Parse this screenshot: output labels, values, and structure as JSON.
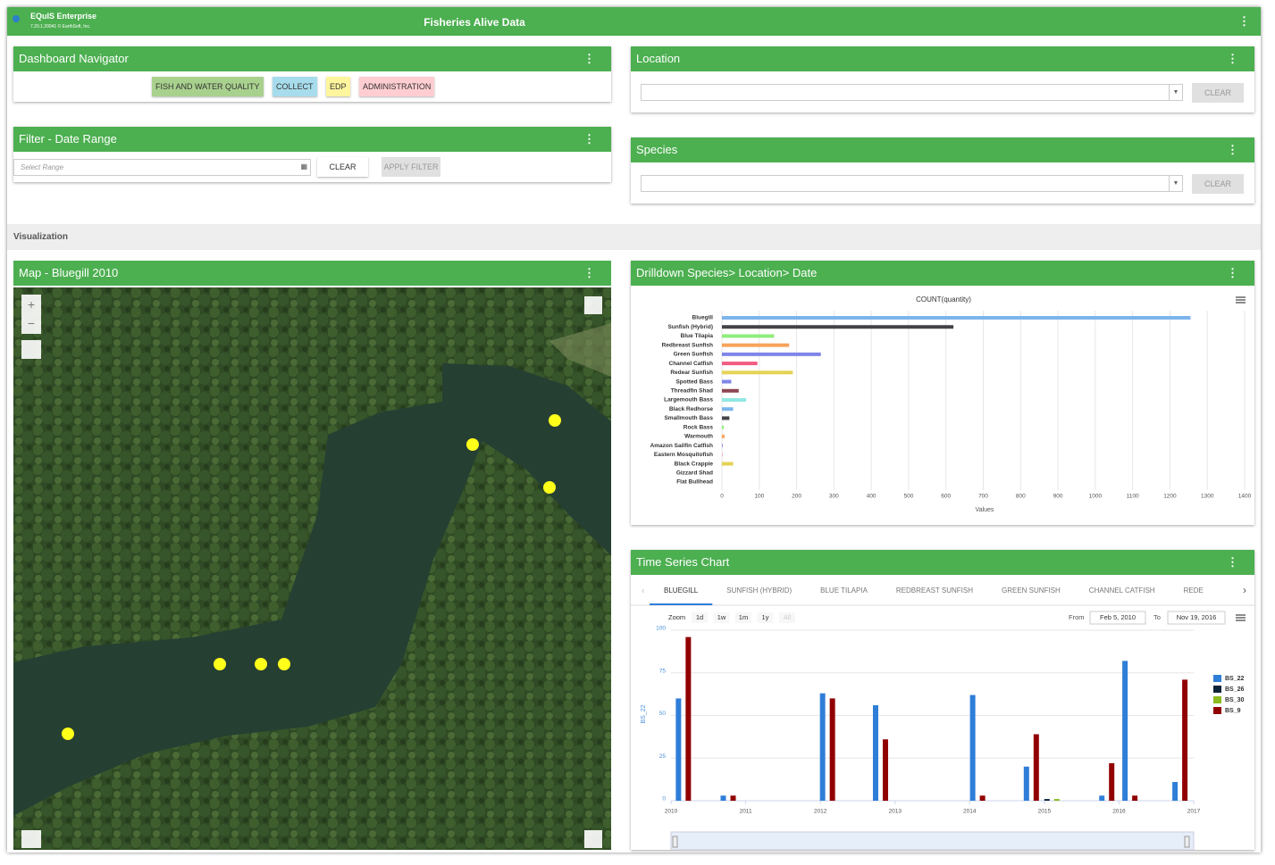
{
  "header": {
    "app_name": "EQuIS Enterprise",
    "version": "7.20.1.20041 © EarthSoft, Inc.",
    "title": "Fisheries Alive Data"
  },
  "navigator": {
    "title": "Dashboard Navigator",
    "buttons": [
      "FISH AND WATER QUALITY",
      "COLLECT",
      "EDP",
      "ADMINISTRATION"
    ]
  },
  "filter": {
    "title": "Filter - Date Range",
    "placeholder": "Select Range",
    "clear": "CLEAR",
    "apply": "APPLY FILTER"
  },
  "location": {
    "title": "Location",
    "clear": "CLEAR"
  },
  "species": {
    "title": "Species",
    "clear": "CLEAR"
  },
  "section": "Visualization",
  "map": {
    "title": "Map - Bluegill 2010"
  },
  "drilldown": {
    "title": "Drilldown Species> Location> Date"
  },
  "time_series_panel": {
    "title": "Time Series Chart",
    "tabs": [
      "BLUEGILL",
      "SUNFISH (HYBRID)",
      "BLUE TILAPIA",
      "REDBREAST SUNFISH",
      "GREEN SUNFISH",
      "CHANNEL CATFISH",
      "REDE"
    ],
    "zoom_label": "Zoom",
    "zoom_buttons": [
      "1d",
      "1w",
      "1m",
      "1y",
      "All"
    ],
    "from_label": "From",
    "from": "Feb 5, 2010",
    "to_label": "To",
    "to": "Nov 19, 2016"
  },
  "chart_data": [
    {
      "type": "hbar",
      "title": "COUNT(quantity)",
      "x_label": "Values",
      "categories": [
        "Bluegill",
        "Sunfish (Hybrid)",
        "Blue Tilapia",
        "Redbreast Sunfish",
        "Green Sunfish",
        "Channel Catfish",
        "Redear Sunfish",
        "Spotted Bass",
        "Threadfin Shad",
        "Largemouth Bass",
        "Black Redhorse",
        "Smallmouth Bass",
        "Rock Bass",
        "Warmouth",
        "Amazon Sailfin Catfish",
        "Eastern Mosquitofish",
        "Black Crappie",
        "Gizzard Shad",
        "Flat Bullhead"
      ],
      "values": [
        1255,
        620,
        140,
        180,
        265,
        95,
        190,
        25,
        45,
        65,
        30,
        20,
        5,
        7,
        2,
        1,
        30,
        0,
        0
      ],
      "colors": [
        "#7cb5ec",
        "#434348",
        "#90ed7d",
        "#f7a35c",
        "#8085e9",
        "#f15c80",
        "#e4d354",
        "#8085e8",
        "#8d4653",
        "#91e8e1",
        "#7cb5ec",
        "#434348",
        "#90ed7d",
        "#f7a35c",
        "#8085e9",
        "#f15c80",
        "#e4d354",
        "#2b908f",
        "#f45b5b"
      ],
      "xlim": [
        0,
        1400
      ],
      "xticks": [
        0,
        100,
        200,
        300,
        400,
        500,
        600,
        700,
        800,
        900,
        1000,
        1100,
        1200,
        1300,
        1400
      ],
      "grid": true
    },
    {
      "type": "column",
      "y_label": "BS_22",
      "x": [
        2010.1,
        2010.7,
        2012.03,
        2012.74,
        2014.04,
        2014.76,
        2015.77,
        2016.08,
        2016.75
      ],
      "series": [
        {
          "name": "BS_22",
          "color": "#2f7ed8",
          "values": [
            60,
            3,
            63,
            56,
            62,
            20,
            3,
            82,
            11
          ]
        },
        {
          "name": "BS_26",
          "color": "#0d233a",
          "values": [
            null,
            null,
            null,
            null,
            null,
            1,
            null,
            null,
            null
          ]
        },
        {
          "name": "BS_30",
          "color": "#8bbc21",
          "values": [
            null,
            null,
            null,
            null,
            null,
            1,
            null,
            null,
            null
          ]
        },
        {
          "name": "BS_9",
          "color": "#910000",
          "values": [
            96,
            3,
            60,
            36,
            3,
            39,
            22,
            3,
            71
          ]
        }
      ],
      "xlim": [
        2010,
        2017
      ],
      "xticks": [
        2010,
        2011,
        2012,
        2013,
        2014,
        2015,
        2016,
        2017
      ],
      "ylim": [
        0,
        100
      ],
      "yticks": [
        0,
        25,
        50,
        75,
        100
      ],
      "grid": true
    }
  ]
}
